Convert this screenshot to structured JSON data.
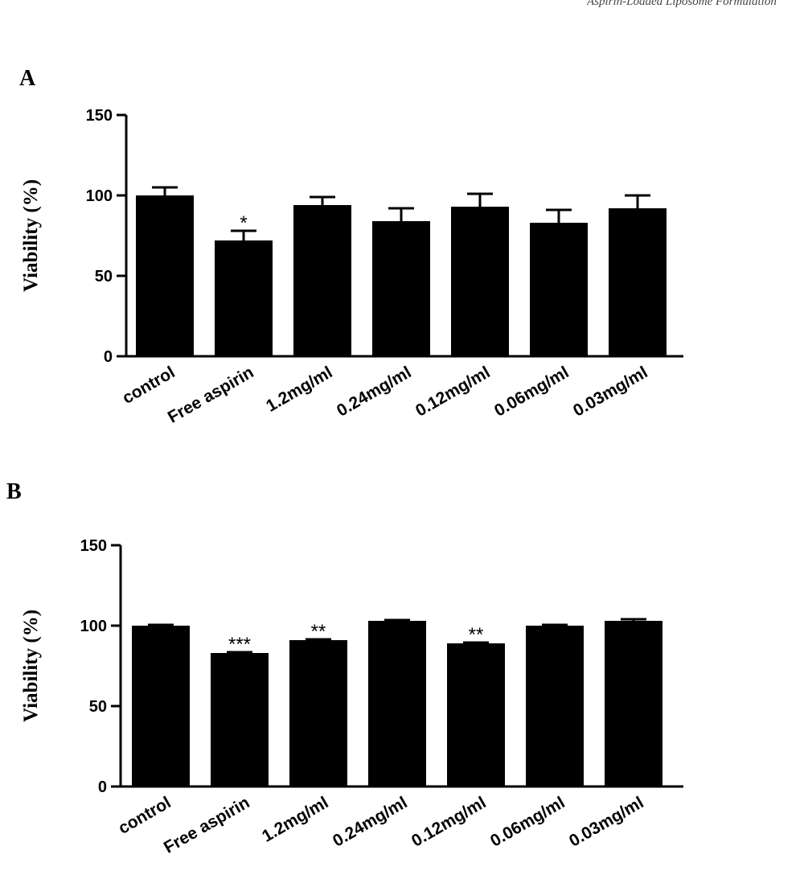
{
  "header": {
    "running_text": "Aspirin-Loaded Liposome Formulation"
  },
  "colors": {
    "bar": "#000000",
    "axis": "#000000",
    "background": "#ffffff"
  },
  "chart_data": [
    {
      "panel": "A",
      "type": "bar",
      "title": "",
      "xlabel": "",
      "ylabel": "Viability (%)",
      "ylim": [
        0,
        150
      ],
      "yticks": [
        "0",
        "50",
        "100",
        "150"
      ],
      "grid": false,
      "categories": [
        "control",
        "Free aspirin",
        "1.2mg/ml",
        "0.24mg/ml",
        "0.12mg/ml",
        "0.06mg/ml",
        "0.03mg/ml"
      ],
      "values": [
        100,
        72,
        94,
        84,
        93,
        83,
        92
      ],
      "errors": [
        5,
        6,
        5,
        8,
        8,
        8,
        8
      ],
      "annotations": [
        "",
        "*",
        "",
        "",
        "",
        "",
        ""
      ]
    },
    {
      "panel": "B",
      "type": "bar",
      "title": "",
      "xlabel": "",
      "ylabel": "Viability (%)",
      "ylim": [
        0,
        150
      ],
      "yticks": [
        "0",
        "50",
        "100",
        "150"
      ],
      "grid": false,
      "categories": [
        "control",
        "Free aspirin",
        "1.2mg/ml",
        "0.24mg/ml",
        "0.12mg/ml",
        "0.06mg/ml",
        "0.03mg/ml"
      ],
      "values": [
        100,
        83,
        91,
        103,
        89,
        100,
        103
      ],
      "errors": [
        0.5,
        0.5,
        0.5,
        0.5,
        0.5,
        0.5,
        1
      ],
      "annotations": [
        "",
        "***",
        "**",
        "",
        "**",
        "",
        ""
      ]
    }
  ]
}
